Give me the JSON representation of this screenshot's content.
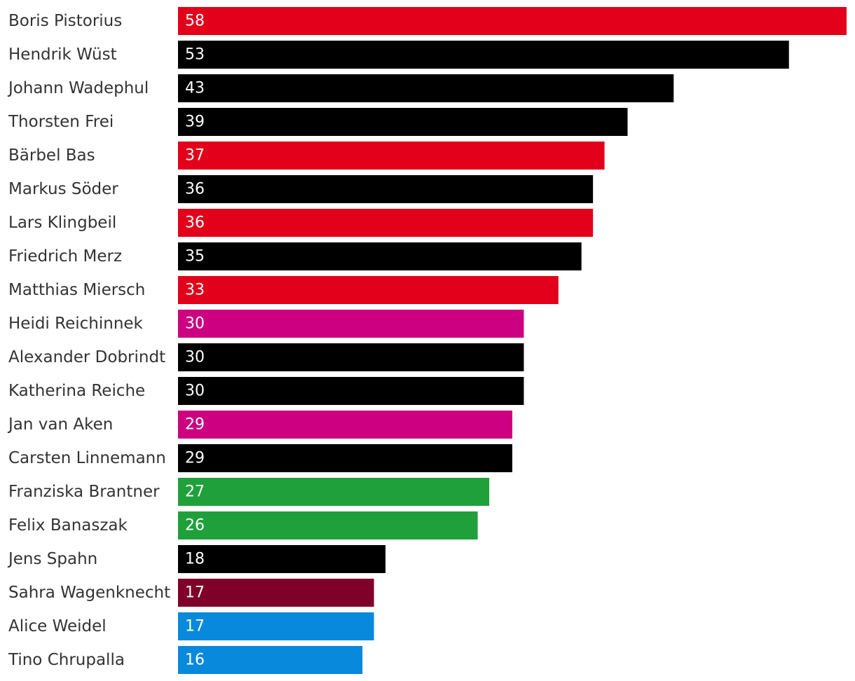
{
  "chart_data": {
    "type": "bar",
    "orientation": "horizontal",
    "title": "",
    "xlabel": "",
    "ylabel": "",
    "xlim": [
      0,
      58
    ],
    "grid": false,
    "legend": "none",
    "categories": [
      "Boris Pistorius",
      "Hendrik Wüst",
      "Johann Wadephul",
      "Thorsten Frei",
      "Bärbel Bas",
      "Markus Söder",
      "Lars Klingbeil",
      "Friedrich Merz",
      "Matthias Miersch",
      "Heidi Reichinnek",
      "Alexander Dobrindt",
      "Katherina Reiche",
      "Jan van Aken",
      "Carsten Linnemann",
      "Franziska Brantner",
      "Felix Banaszak",
      "Jens Spahn",
      "Sahra Wagenknecht",
      "Alice Weidel",
      "Tino Chrupalla"
    ],
    "values": [
      58,
      53,
      43,
      39,
      37,
      36,
      36,
      35,
      33,
      30,
      30,
      30,
      29,
      29,
      27,
      26,
      18,
      17,
      17,
      16
    ],
    "value_labels": [
      "58",
      "53",
      "43",
      "39",
      "37",
      "36",
      "36",
      "35",
      "33",
      "30",
      "30",
      "30",
      "29",
      "29",
      "27",
      "26",
      "18",
      "17",
      "17",
      "16"
    ],
    "bar_colors": [
      "#e2001a",
      "#000000",
      "#000000",
      "#000000",
      "#e2001a",
      "#000000",
      "#e2001a",
      "#000000",
      "#e2001a",
      "#cc0080",
      "#000000",
      "#000000",
      "#cc0080",
      "#000000",
      "#1fa03b",
      "#1fa03b",
      "#000000",
      "#7f0029",
      "#0889dc",
      "#0889dc"
    ]
  }
}
